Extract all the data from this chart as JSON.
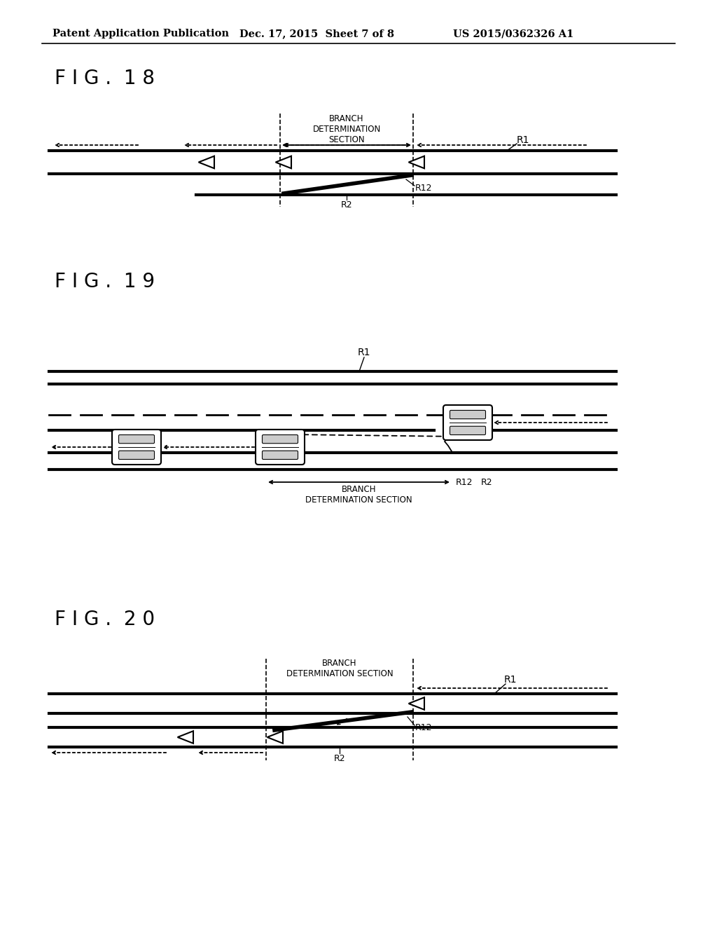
{
  "bg_color": "#ffffff",
  "header_left": "Patent Application Publication",
  "header_mid": "Dec. 17, 2015  Sheet 7 of 8",
  "header_right": "US 2015/0362326 A1",
  "fig18_label": "F I G .  1 8",
  "fig19_label": "F I G .  1 9",
  "fig20_label": "F I G .  2 0"
}
